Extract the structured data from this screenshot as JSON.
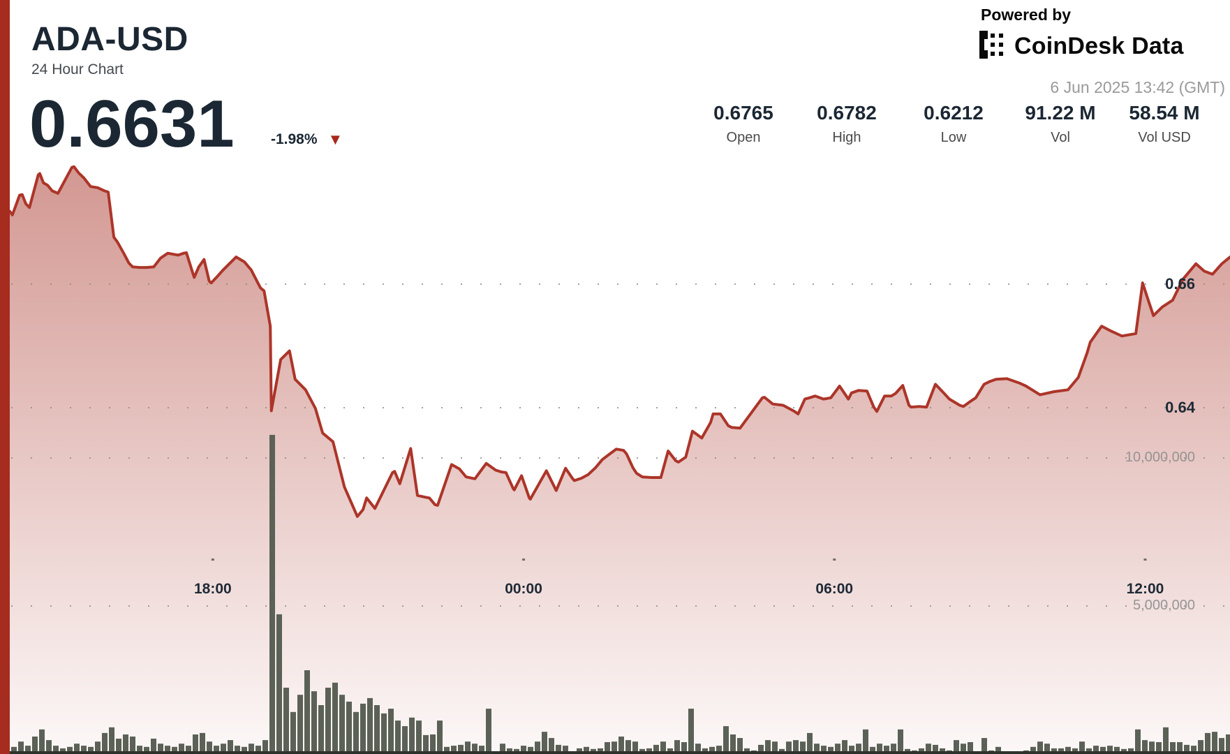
{
  "header": {
    "symbol": "ADA-USD",
    "subtitle": "24 Hour Chart",
    "price": "0.6631",
    "change": "-1.98%",
    "change_direction": "down",
    "down_arrow": "▼"
  },
  "powered_by": {
    "label": "Powered by",
    "brand": "CoinDesk Data",
    "timestamp": "6 Jun 2025 13:42 (GMT)"
  },
  "stats": {
    "items": [
      {
        "value": "0.6765",
        "label": "Open"
      },
      {
        "value": "0.6782",
        "label": "High"
      },
      {
        "value": "0.6212",
        "label": "Low"
      },
      {
        "value": "91.22 M",
        "label": "Vol"
      },
      {
        "value": "58.54 M",
        "label": "Vol USD"
      }
    ]
  },
  "colors": {
    "accent_red": "#a52c1f",
    "line": "#ac3529",
    "fill_top": "rgba(170,55,44,0.52)",
    "fill_bottom": "rgba(170,55,44,0.03)",
    "volume_bar": "#5b6156",
    "navy_text": "#1b2733",
    "gray_text": "#4a4a4a",
    "light_gray_text": "#9a9a9a",
    "grid_dot": "#8a8a8a",
    "baseline": "#2e322b"
  },
  "chart_data": {
    "type": "line",
    "title": "ADA-USD 24 Hour Chart",
    "subtype": "price line with volume bars",
    "grid": "dotted horizontal rows",
    "legend": "none",
    "time_axis": {
      "start": "5 Jun 2025 ~14:05 GMT",
      "end": "6 Jun 2025 13:42 GMT",
      "tick_labels": [
        "18:00",
        "00:00",
        "06:00",
        "12:00"
      ],
      "tick_hours_from_start": [
        3.92,
        9.92,
        15.92,
        21.92
      ]
    },
    "price_axis": {
      "tick_labels": [
        "0.66",
        "0.64"
      ],
      "tick_values": [
        0.66,
        0.64
      ],
      "open": 0.6765,
      "high": 0.6782,
      "low": 0.6212,
      "last": 0.6631
    },
    "volume_axis": {
      "tick_labels": [
        "10,000,000",
        "5,000,000"
      ],
      "tick_values_millions": [
        10,
        5
      ]
    },
    "price_series_hours_price": [
      [
        0.0,
        0.6718
      ],
      [
        0.05,
        0.6712
      ],
      [
        0.19,
        0.6744
      ],
      [
        0.24,
        0.6745
      ],
      [
        0.31,
        0.673
      ],
      [
        0.38,
        0.6724
      ],
      [
        0.55,
        0.6777
      ],
      [
        0.58,
        0.6779
      ],
      [
        0.65,
        0.6764
      ],
      [
        0.73,
        0.676
      ],
      [
        0.82,
        0.6751
      ],
      [
        0.93,
        0.6747
      ],
      [
        1.2,
        0.6789
      ],
      [
        1.24,
        0.679
      ],
      [
        1.33,
        0.678
      ],
      [
        1.43,
        0.6772
      ],
      [
        1.56,
        0.6758
      ],
      [
        1.7,
        0.6756
      ],
      [
        1.83,
        0.6751
      ],
      [
        1.9,
        0.6749
      ],
      [
        2.01,
        0.6676
      ],
      [
        2.08,
        0.6668
      ],
      [
        2.2,
        0.665
      ],
      [
        2.3,
        0.6634
      ],
      [
        2.37,
        0.6628
      ],
      [
        2.51,
        0.6627
      ],
      [
        2.64,
        0.6627
      ],
      [
        2.78,
        0.6628
      ],
      [
        2.91,
        0.6642
      ],
      [
        3.05,
        0.665
      ],
      [
        3.25,
        0.6647
      ],
      [
        3.36,
        0.665
      ],
      [
        3.41,
        0.6651
      ],
      [
        3.54,
        0.6616
      ],
      [
        3.56,
        0.6611
      ],
      [
        3.65,
        0.6628
      ],
      [
        3.75,
        0.664
      ],
      [
        3.85,
        0.6605
      ],
      [
        3.89,
        0.6602
      ],
      [
        3.99,
        0.6611
      ],
      [
        4.12,
        0.6623
      ],
      [
        4.37,
        0.6644
      ],
      [
        4.53,
        0.6636
      ],
      [
        4.66,
        0.6623
      ],
      [
        4.84,
        0.6594
      ],
      [
        4.91,
        0.6589
      ],
      [
        5.03,
        0.6532
      ],
      [
        5.05,
        0.6395
      ],
      [
        5.23,
        0.6478
      ],
      [
        5.4,
        0.6492
      ],
      [
        5.51,
        0.6446
      ],
      [
        5.71,
        0.6429
      ],
      [
        5.9,
        0.6399
      ],
      [
        6.04,
        0.6359
      ],
      [
        6.24,
        0.6345
      ],
      [
        6.46,
        0.6272
      ],
      [
        6.71,
        0.6224
      ],
      [
        6.82,
        0.6235
      ],
      [
        6.89,
        0.6254
      ],
      [
        7.05,
        0.6237
      ],
      [
        7.39,
        0.6295
      ],
      [
        7.43,
        0.6297
      ],
      [
        7.53,
        0.6277
      ],
      [
        7.74,
        0.6334
      ],
      [
        7.87,
        0.6258
      ],
      [
        8.03,
        0.6255
      ],
      [
        8.1,
        0.6254
      ],
      [
        8.21,
        0.6243
      ],
      [
        8.26,
        0.6242
      ],
      [
        8.53,
        0.6308
      ],
      [
        8.68,
        0.6301
      ],
      [
        8.81,
        0.6288
      ],
      [
        8.98,
        0.6285
      ],
      [
        9.2,
        0.631
      ],
      [
        9.38,
        0.6299
      ],
      [
        9.49,
        0.6296
      ],
      [
        9.58,
        0.6295
      ],
      [
        9.72,
        0.6269
      ],
      [
        9.74,
        0.6267
      ],
      [
        9.88,
        0.629
      ],
      [
        10.03,
        0.6254
      ],
      [
        10.05,
        0.6252
      ],
      [
        10.36,
        0.6298
      ],
      [
        10.55,
        0.6266
      ],
      [
        10.73,
        0.6302
      ],
      [
        10.86,
        0.6286
      ],
      [
        10.9,
        0.6282
      ],
      [
        11.04,
        0.6286
      ],
      [
        11.17,
        0.6292
      ],
      [
        11.31,
        0.6303
      ],
      [
        11.44,
        0.6316
      ],
      [
        11.58,
        0.6325
      ],
      [
        11.71,
        0.6333
      ],
      [
        11.85,
        0.6331
      ],
      [
        11.91,
        0.6325
      ],
      [
        12.03,
        0.6303
      ],
      [
        12.1,
        0.6294
      ],
      [
        12.21,
        0.6288
      ],
      [
        12.39,
        0.6287
      ],
      [
        12.57,
        0.6287
      ],
      [
        12.71,
        0.633
      ],
      [
        12.86,
        0.6314
      ],
      [
        12.91,
        0.6312
      ],
      [
        13.05,
        0.632
      ],
      [
        13.18,
        0.6362
      ],
      [
        13.36,
        0.6351
      ],
      [
        13.53,
        0.6376
      ],
      [
        13.58,
        0.639
      ],
      [
        13.72,
        0.639
      ],
      [
        13.87,
        0.6371
      ],
      [
        13.94,
        0.6368
      ],
      [
        14.1,
        0.6367
      ],
      [
        14.53,
        0.6416
      ],
      [
        14.57,
        0.6417
      ],
      [
        14.73,
        0.6406
      ],
      [
        14.93,
        0.6404
      ],
      [
        15.15,
        0.6394
      ],
      [
        15.22,
        0.639
      ],
      [
        15.35,
        0.6414
      ],
      [
        15.44,
        0.6416
      ],
      [
        15.55,
        0.6419
      ],
      [
        15.71,
        0.6414
      ],
      [
        15.85,
        0.6416
      ],
      [
        16.02,
        0.6435
      ],
      [
        16.19,
        0.6414
      ],
      [
        16.25,
        0.6424
      ],
      [
        16.39,
        0.6428
      ],
      [
        16.55,
        0.6427
      ],
      [
        16.68,
        0.6401
      ],
      [
        16.74,
        0.6394
      ],
      [
        16.89,
        0.6419
      ],
      [
        17.02,
        0.6419
      ],
      [
        17.1,
        0.6423
      ],
      [
        17.24,
        0.6436
      ],
      [
        17.36,
        0.6404
      ],
      [
        17.4,
        0.6401
      ],
      [
        17.56,
        0.6402
      ],
      [
        17.7,
        0.6401
      ],
      [
        17.87,
        0.6438
      ],
      [
        18.03,
        0.6424
      ],
      [
        18.14,
        0.6414
      ],
      [
        18.34,
        0.6404
      ],
      [
        18.41,
        0.6402
      ],
      [
        18.54,
        0.641
      ],
      [
        18.65,
        0.6416
      ],
      [
        18.81,
        0.6438
      ],
      [
        18.91,
        0.6442
      ],
      [
        19.04,
        0.6446
      ],
      [
        19.25,
        0.6447
      ],
      [
        19.49,
        0.644
      ],
      [
        19.62,
        0.6435
      ],
      [
        19.89,
        0.6421
      ],
      [
        20.16,
        0.6426
      ],
      [
        20.43,
        0.6429
      ],
      [
        20.63,
        0.6449
      ],
      [
        20.8,
        0.6489
      ],
      [
        20.86,
        0.6506
      ],
      [
        21.08,
        0.6532
      ],
      [
        21.24,
        0.6525
      ],
      [
        21.47,
        0.6516
      ],
      [
        21.74,
        0.652
      ],
      [
        21.87,
        0.6602
      ],
      [
        21.98,
        0.6574
      ],
      [
        22.08,
        0.6549
      ],
      [
        22.25,
        0.6563
      ],
      [
        22.45,
        0.6574
      ],
      [
        22.65,
        0.6608
      ],
      [
        22.9,
        0.6633
      ],
      [
        23.06,
        0.6621
      ],
      [
        23.22,
        0.6616
      ],
      [
        23.4,
        0.6633
      ],
      [
        23.56,
        0.6644
      ]
    ],
    "volume_series_millions": [
      0.24,
      0.42,
      0.28,
      0.59,
      0.83,
      0.47,
      0.28,
      0.19,
      0.24,
      0.35,
      0.28,
      0.24,
      0.42,
      0.71,
      0.9,
      0.52,
      0.66,
      0.59,
      0.28,
      0.24,
      0.52,
      0.35,
      0.28,
      0.24,
      0.35,
      0.28,
      0.66,
      0.71,
      0.42,
      0.28,
      0.35,
      0.47,
      0.28,
      0.24,
      0.35,
      0.28,
      0.47,
      10.78,
      4.72,
      2.24,
      1.42,
      2.0,
      2.83,
      2.12,
      1.65,
      2.24,
      2.41,
      2.0,
      1.77,
      1.42,
      1.7,
      1.89,
      1.65,
      1.37,
      1.53,
      1.13,
      0.94,
      1.23,
      1.13,
      0.64,
      0.66,
      1.13,
      0.24,
      0.28,
      0.31,
      0.42,
      0.35,
      0.28,
      1.53,
      0.07,
      0.35,
      0.19,
      0.17,
      0.28,
      0.24,
      0.42,
      0.75,
      0.54,
      0.31,
      0.28,
      0.07,
      0.19,
      0.24,
      0.17,
      0.19,
      0.4,
      0.42,
      0.59,
      0.47,
      0.42,
      0.17,
      0.19,
      0.31,
      0.42,
      0.19,
      0.47,
      0.4,
      1.53,
      0.35,
      0.19,
      0.24,
      0.28,
      0.94,
      0.66,
      0.54,
      0.19,
      0.12,
      0.31,
      0.47,
      0.42,
      0.17,
      0.42,
      0.47,
      0.42,
      0.71,
      0.35,
      0.28,
      0.24,
      0.35,
      0.47,
      0.28,
      0.35,
      0.83,
      0.24,
      0.35,
      0.28,
      0.35,
      0.83,
      0.17,
      0.12,
      0.19,
      0.35,
      0.31,
      0.19,
      0.12,
      0.47,
      0.35,
      0.4,
      0.07,
      0.54,
      0.12,
      0.24,
      0.07,
      0.05,
      0.07,
      0.12,
      0.24,
      0.42,
      0.35,
      0.19,
      0.19,
      0.24,
      0.19,
      0.42,
      0.19,
      0.28,
      0.24,
      0.28,
      0.24,
      0.17,
      0.19,
      0.83,
      0.47,
      0.42,
      0.4,
      0.9,
      0.4,
      0.4,
      0.31,
      0.28,
      0.47,
      0.71,
      0.75,
      0.54,
      0.66
    ]
  }
}
